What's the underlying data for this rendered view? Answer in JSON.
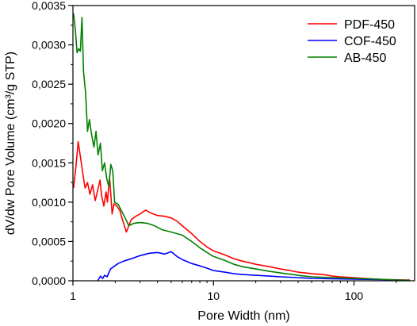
{
  "chart_data": {
    "type": "line",
    "xlabel": "Pore Width (nm)",
    "ylabel": "dV/dw Pore Volume (cm³/g STP)",
    "x_scale": "log",
    "xlim": [
      1,
      270
    ],
    "ylim": [
      0,
      0.0035
    ],
    "x_ticks": [
      1,
      10,
      100
    ],
    "x_tick_labels": [
      "1",
      "10",
      "100"
    ],
    "y_ticks": [
      0,
      0.0005,
      0.001,
      0.0015,
      0.002,
      0.0025,
      0.003,
      0.0035
    ],
    "y_tick_labels": [
      "0,0000",
      "0,0005",
      "0,0010",
      "0,0015",
      "0,0020",
      "0,0025",
      "0,0030",
      "0,0035"
    ],
    "grid": false,
    "legend_position": "top-right",
    "series": [
      {
        "name": "PDF-450",
        "color": "#ff0000",
        "points": [
          [
            1.01,
            0.00118
          ],
          [
            1.05,
            0.00145
          ],
          [
            1.09,
            0.00177
          ],
          [
            1.14,
            0.00153
          ],
          [
            1.18,
            0.00135
          ],
          [
            1.22,
            0.00118
          ],
          [
            1.27,
            0.00125
          ],
          [
            1.32,
            0.0011
          ],
          [
            1.38,
            0.00122
          ],
          [
            1.44,
            0.00102
          ],
          [
            1.5,
            0.00115
          ],
          [
            1.56,
            0.00128
          ],
          [
            1.6,
            0.00108
          ],
          [
            1.66,
            0.00095
          ],
          [
            1.72,
            0.00113
          ],
          [
            1.76,
            0.001
          ],
          [
            1.82,
            0.00132
          ],
          [
            1.86,
            0.0011
          ],
          [
            1.9,
            0.00085
          ],
          [
            1.96,
            0.00098
          ],
          [
            2.05,
            0.00095
          ],
          [
            2.15,
            0.0009
          ],
          [
            2.25,
            0.00078
          ],
          [
            2.4,
            0.00062
          ],
          [
            2.6,
            0.00078
          ],
          [
            2.8,
            0.00082
          ],
          [
            3.0,
            0.00085
          ],
          [
            3.3,
            0.0009
          ],
          [
            3.6,
            0.00086
          ],
          [
            4.0,
            0.00083
          ],
          [
            4.5,
            0.00082
          ],
          [
            5.0,
            0.0008
          ],
          [
            5.5,
            0.00076
          ],
          [
            6.0,
            0.0007
          ],
          [
            7,
            0.0006
          ],
          [
            8,
            0.0005
          ],
          [
            9,
            0.00043
          ],
          [
            10,
            0.00038
          ],
          [
            12,
            0.00033
          ],
          [
            14,
            0.00028
          ],
          [
            16,
            0.00025
          ],
          [
            18,
            0.00023
          ],
          [
            20,
            0.00021
          ],
          [
            25,
            0.00018
          ],
          [
            30,
            0.00015
          ],
          [
            35,
            0.00013
          ],
          [
            40,
            0.00011
          ],
          [
            45,
            0.0001
          ],
          [
            50,
            9e-05
          ],
          [
            60,
            8e-05
          ],
          [
            70,
            6e-05
          ],
          [
            80,
            5e-05
          ],
          [
            100,
            4e-05
          ],
          [
            120,
            3e-05
          ],
          [
            150,
            2e-05
          ],
          [
            180,
            1.5e-05
          ],
          [
            210,
            1.2e-05
          ],
          [
            250,
            1e-05
          ]
        ]
      },
      {
        "name": "COF-450",
        "color": "#0000ff",
        "points": [
          [
            1.5,
            0.0
          ],
          [
            1.57,
            6e-05
          ],
          [
            1.63,
            3e-05
          ],
          [
            1.68,
            7e-05
          ],
          [
            1.75,
            5e-05
          ],
          [
            1.85,
            0.00015
          ],
          [
            1.95,
            0.00018
          ],
          [
            2.1,
            0.00022
          ],
          [
            2.3,
            0.00025
          ],
          [
            2.6,
            0.00028
          ],
          [
            3.0,
            0.00032
          ],
          [
            3.5,
            0.00035
          ],
          [
            4.0,
            0.00036
          ],
          [
            4.5,
            0.00034
          ],
          [
            5.0,
            0.00037
          ],
          [
            5.5,
            0.00031
          ],
          [
            6.0,
            0.00027
          ],
          [
            7,
            0.00022
          ],
          [
            8,
            0.00019
          ],
          [
            9,
            0.00016
          ],
          [
            10,
            0.00013
          ],
          [
            12,
            0.00011
          ],
          [
            14,
            9e-05
          ],
          [
            16,
            8e-05
          ],
          [
            20,
            7e-05
          ],
          [
            25,
            6e-05
          ],
          [
            30,
            5e-05
          ],
          [
            40,
            4e-05
          ],
          [
            50,
            3e-05
          ],
          [
            70,
            2.5e-05
          ],
          [
            100,
            2e-05
          ],
          [
            150,
            1.5e-05
          ],
          [
            200,
            1e-05
          ],
          [
            250,
            5e-06
          ]
        ]
      },
      {
        "name": "AB-450",
        "color": "#008000",
        "points": [
          [
            1.01,
            0.0034
          ],
          [
            1.04,
            0.0032
          ],
          [
            1.07,
            0.0029
          ],
          [
            1.1,
            0.00295
          ],
          [
            1.13,
            0.00292
          ],
          [
            1.16,
            0.00335
          ],
          [
            1.19,
            0.00265
          ],
          [
            1.23,
            0.0024
          ],
          [
            1.27,
            0.0019
          ],
          [
            1.31,
            0.00205
          ],
          [
            1.36,
            0.00185
          ],
          [
            1.41,
            0.0017
          ],
          [
            1.46,
            0.0019
          ],
          [
            1.51,
            0.0016
          ],
          [
            1.57,
            0.00175
          ],
          [
            1.62,
            0.0014
          ],
          [
            1.68,
            0.0015
          ],
          [
            1.74,
            0.0013
          ],
          [
            1.8,
            0.0012
          ],
          [
            1.86,
            0.00148
          ],
          [
            1.92,
            0.0014
          ],
          [
            1.98,
            0.001
          ],
          [
            2.1,
            0.00097
          ],
          [
            2.2,
            0.0009
          ],
          [
            2.35,
            0.0008
          ],
          [
            2.5,
            0.0007
          ],
          [
            2.7,
            0.00073
          ],
          [
            3.0,
            0.00074
          ],
          [
            3.4,
            0.00073
          ],
          [
            3.8,
            0.0007
          ],
          [
            4.3,
            0.00065
          ],
          [
            5.0,
            0.00062
          ],
          [
            6.0,
            0.00058
          ],
          [
            7,
            0.0005
          ],
          [
            8,
            0.00042
          ],
          [
            9,
            0.00036
          ],
          [
            10,
            0.00031
          ],
          [
            12,
            0.00026
          ],
          [
            14,
            0.00021
          ],
          [
            16,
            0.00018
          ],
          [
            20,
            0.00015
          ],
          [
            25,
            0.00012
          ],
          [
            30,
            0.0001
          ],
          [
            40,
            7e-05
          ],
          [
            50,
            5e-05
          ],
          [
            70,
            4e-05
          ],
          [
            100,
            3e-05
          ],
          [
            150,
            2e-05
          ],
          [
            200,
            1e-05
          ],
          [
            250,
            5e-06
          ]
        ]
      }
    ]
  }
}
